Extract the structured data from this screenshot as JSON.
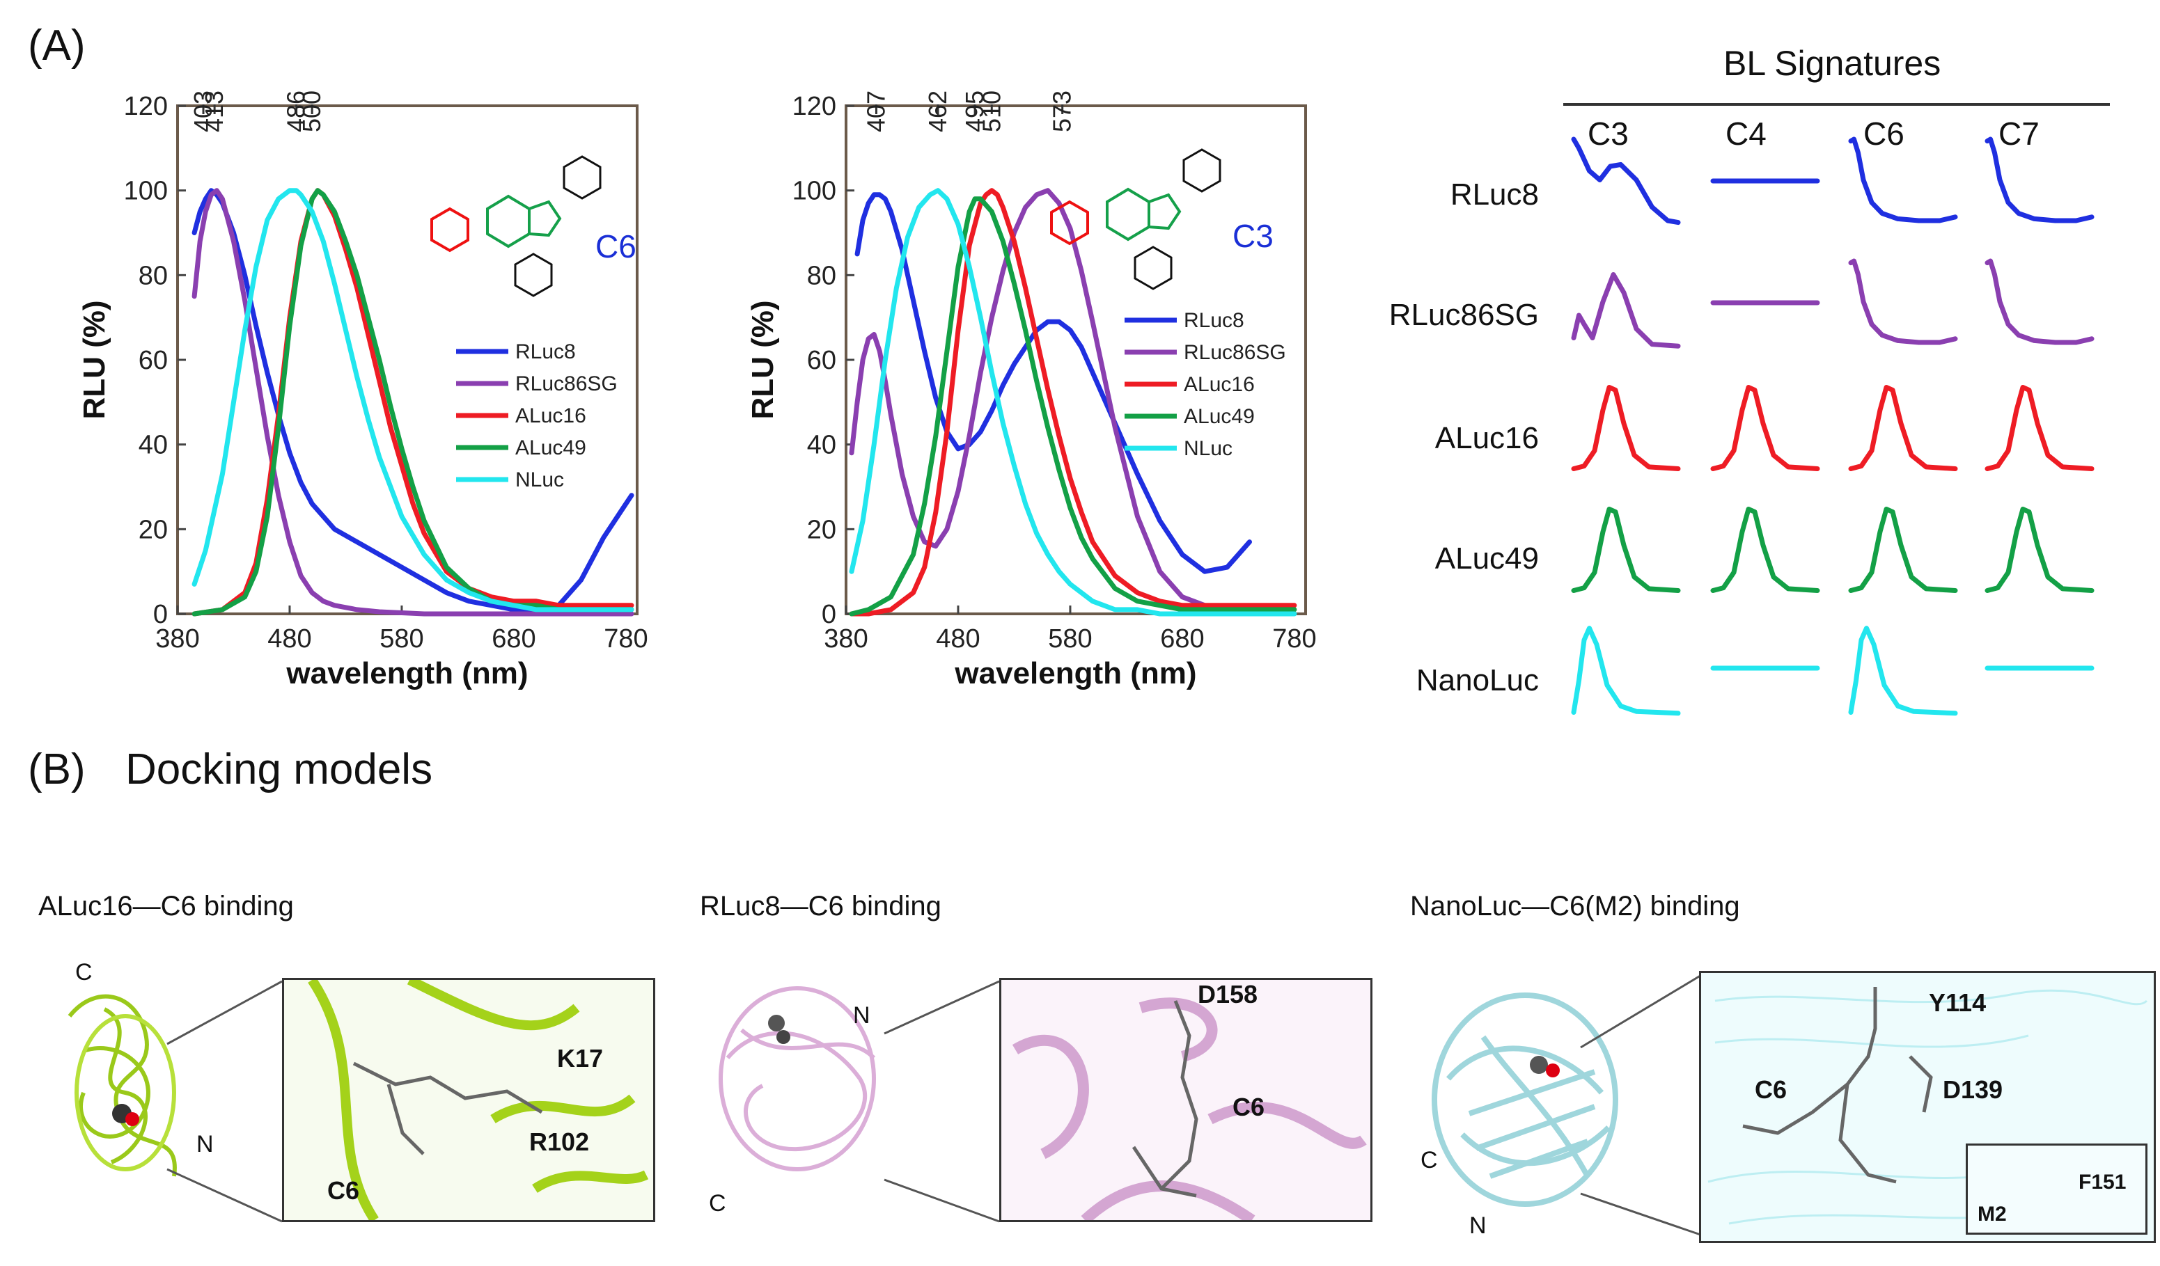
{
  "panel_a_label": "(A)",
  "panel_b_label": "(B)",
  "panel_b_title": "Docking models",
  "colors": {
    "RLuc8": "#1f2fe0",
    "RLuc86SG": "#8a3fb0",
    "ALuc16": "#ee1c24",
    "ALuc49": "#13a046",
    "NLuc": "#22e6ee",
    "substrate_label": "#1a2fd6"
  },
  "chart_data": [
    {
      "type": "line",
      "substrate_label": "C6",
      "xlabel": "wavelength (nm)",
      "ylabel": "RLU (%)",
      "xlim": [
        380,
        790
      ],
      "ylim": [
        0,
        120
      ],
      "xticks": [
        "380",
        "480",
        "580",
        "680",
        "780"
      ],
      "yticks": [
        "0",
        "20",
        "40",
        "60",
        "80",
        "100",
        "120"
      ],
      "peak_labels": [
        {
          "wavelength": 403,
          "text": "403"
        },
        {
          "wavelength": 413,
          "text": "413"
        },
        {
          "wavelength": 486,
          "text": "486"
        },
        {
          "wavelength": 500,
          "text": "500"
        }
      ],
      "legend": [
        "RLuc8",
        "RLuc86SG",
        "ALuc16",
        "ALuc49",
        "NLuc"
      ],
      "series": [
        {
          "name": "RLuc8",
          "x": [
            395,
            400,
            405,
            410,
            415,
            420,
            430,
            440,
            450,
            460,
            470,
            480,
            490,
            500,
            520,
            540,
            560,
            580,
            600,
            620,
            640,
            660,
            680,
            700,
            720,
            740,
            760,
            780,
            785
          ],
          "y": [
            90,
            95,
            98,
            100,
            99,
            97,
            90,
            80,
            68,
            57,
            47,
            38,
            31,
            26,
            20,
            17,
            14,
            11,
            8,
            5,
            3,
            2,
            1,
            1,
            2,
            8,
            18,
            26,
            28
          ]
        },
        {
          "name": "RLuc86SG",
          "x": [
            395,
            400,
            405,
            410,
            415,
            420,
            430,
            440,
            450,
            460,
            470,
            480,
            490,
            500,
            510,
            520,
            540,
            560,
            600,
            650,
            700,
            750,
            785
          ],
          "y": [
            75,
            88,
            95,
            99,
            100,
            98,
            88,
            74,
            58,
            42,
            28,
            17,
            9,
            5,
            3,
            2,
            1,
            0.5,
            0,
            0,
            0,
            0,
            0
          ]
        },
        {
          "name": "ALuc16",
          "x": [
            395,
            420,
            440,
            450,
            460,
            470,
            480,
            490,
            500,
            505,
            510,
            520,
            530,
            540,
            550,
            560,
            570,
            580,
            590,
            600,
            620,
            640,
            660,
            680,
            700,
            720,
            740,
            760,
            785
          ],
          "y": [
            0,
            1,
            5,
            12,
            27,
            47,
            70,
            88,
            98,
            100,
            99,
            94,
            86,
            77,
            66,
            55,
            44,
            35,
            26,
            19,
            10,
            6,
            4,
            3,
            3,
            2,
            2,
            2,
            2
          ]
        },
        {
          "name": "ALuc49",
          "x": [
            395,
            420,
            440,
            450,
            460,
            470,
            480,
            490,
            500,
            505,
            510,
            520,
            530,
            540,
            550,
            560,
            570,
            580,
            590,
            600,
            620,
            640,
            660,
            680,
            700,
            720,
            740,
            760,
            785
          ],
          "y": [
            0,
            1,
            4,
            10,
            23,
            44,
            68,
            87,
            98,
            100,
            99,
            95,
            88,
            80,
            70,
            60,
            49,
            39,
            30,
            22,
            11,
            6,
            3,
            2,
            2,
            1,
            1,
            1,
            1
          ]
        },
        {
          "name": "NLuc",
          "x": [
            395,
            405,
            420,
            430,
            440,
            450,
            460,
            470,
            480,
            486,
            490,
            500,
            510,
            520,
            530,
            540,
            550,
            560,
            580,
            600,
            620,
            640,
            660,
            680,
            700,
            720,
            760,
            785
          ],
          "y": [
            7,
            15,
            33,
            50,
            67,
            82,
            93,
            98,
            100,
            100,
            99,
            95,
            88,
            78,
            67,
            56,
            46,
            37,
            23,
            14,
            8,
            5,
            3,
            2,
            1,
            1,
            1,
            1
          ]
        }
      ]
    },
    {
      "type": "line",
      "substrate_label": "C3",
      "xlabel": "wavelength (nm)",
      "ylabel": "RLU (%)",
      "xlim": [
        380,
        790
      ],
      "ylim": [
        0,
        120
      ],
      "xticks": [
        "380",
        "480",
        "580",
        "680",
        "780"
      ],
      "yticks": [
        "0",
        "20",
        "40",
        "60",
        "80",
        "100",
        "120"
      ],
      "peak_labels": [
        {
          "wavelength": 407,
          "text": "407"
        },
        {
          "wavelength": 462,
          "text": "462"
        },
        {
          "wavelength": 495,
          "text": "495"
        },
        {
          "wavelength": 510,
          "text": "510"
        },
        {
          "wavelength": 573,
          "text": "573"
        }
      ],
      "legend": [
        "RLuc8",
        "RLuc86SG",
        "ALuc16",
        "ALuc49",
        "NLuc"
      ],
      "series": [
        {
          "name": "RLuc8",
          "x": [
            390,
            395,
            400,
            405,
            410,
            415,
            420,
            430,
            440,
            450,
            460,
            470,
            480,
            490,
            500,
            510,
            520,
            530,
            540,
            550,
            560,
            570,
            580,
            590,
            600,
            620,
            640,
            660,
            680,
            700,
            720,
            740
          ],
          "y": [
            85,
            93,
            97,
            99,
            99,
            98,
            95,
            86,
            74,
            62,
            51,
            43,
            39,
            40,
            43,
            48,
            54,
            59,
            63,
            67,
            69,
            69,
            67,
            63,
            57,
            45,
            33,
            22,
            14,
            10,
            11,
            17
          ]
        },
        {
          "name": "RLuc86SG",
          "x": [
            385,
            390,
            395,
            400,
            405,
            410,
            415,
            420,
            430,
            440,
            450,
            460,
            470,
            480,
            490,
            500,
            510,
            520,
            530,
            540,
            550,
            560,
            570,
            580,
            590,
            600,
            620,
            640,
            660,
            680,
            700,
            720
          ],
          "y": [
            38,
            50,
            60,
            65,
            66,
            62,
            55,
            47,
            33,
            23,
            17,
            16,
            20,
            29,
            42,
            57,
            70,
            81,
            90,
            96,
            99,
            100,
            97,
            91,
            81,
            69,
            44,
            23,
            10,
            4,
            2,
            1
          ]
        },
        {
          "name": "ALuc16",
          "x": [
            385,
            400,
            420,
            440,
            450,
            460,
            470,
            480,
            490,
            500,
            505,
            510,
            515,
            520,
            530,
            540,
            550,
            560,
            570,
            580,
            590,
            600,
            620,
            640,
            660,
            680,
            700,
            740,
            780
          ],
          "y": [
            0,
            0,
            1,
            5,
            11,
            24,
            43,
            67,
            87,
            97,
            99,
            100,
            99,
            96,
            88,
            77,
            65,
            53,
            42,
            32,
            24,
            17,
            9,
            5,
            3,
            2,
            2,
            2,
            2
          ]
        },
        {
          "name": "ALuc49",
          "x": [
            385,
            400,
            420,
            440,
            450,
            460,
            470,
            480,
            490,
            495,
            500,
            510,
            520,
            530,
            540,
            550,
            560,
            570,
            580,
            590,
            600,
            620,
            640,
            660,
            680,
            700,
            740,
            780
          ],
          "y": [
            0,
            1,
            4,
            14,
            26,
            42,
            62,
            82,
            95,
            98,
            98,
            95,
            88,
            78,
            67,
            55,
            44,
            34,
            25,
            18,
            13,
            6,
            3,
            2,
            1,
            1,
            1,
            1
          ]
        },
        {
          "name": "NLuc",
          "x": [
            385,
            395,
            405,
            415,
            425,
            435,
            445,
            455,
            462,
            470,
            480,
            490,
            500,
            510,
            520,
            530,
            540,
            550,
            560,
            570,
            580,
            600,
            620,
            640,
            660,
            680,
            700,
            740,
            780
          ],
          "y": [
            10,
            22,
            40,
            60,
            77,
            89,
            96,
            99,
            100,
            98,
            92,
            82,
            70,
            57,
            45,
            35,
            26,
            19,
            14,
            10,
            7,
            3,
            1,
            1,
            0,
            0,
            0,
            0,
            0
          ]
        }
      ]
    }
  ],
  "signatures": {
    "title": "BL Signatures",
    "columns": [
      "C3",
      "C4",
      "C6",
      "C7"
    ],
    "rows": [
      {
        "label": "RLuc8",
        "color": "#1f2fe0",
        "shapes": [
          "double-dip",
          "flat",
          "decay",
          "decay"
        ]
      },
      {
        "label": "RLuc86SG",
        "color": "#8a3fb0",
        "shapes": [
          "double-rise",
          "flat",
          "decay",
          "decay"
        ]
      },
      {
        "label": "ALuc16",
        "color": "#ee1c24",
        "shapes": [
          "peak",
          "peak",
          "peak",
          "peak"
        ]
      },
      {
        "label": "ALuc49",
        "color": "#13a046",
        "shapes": [
          "peak",
          "peak",
          "peak",
          "peak"
        ]
      },
      {
        "label": "NanoLuc",
        "color": "#22e6ee",
        "shapes": [
          "early-peak",
          "flat",
          "early-peak",
          "flat"
        ]
      }
    ]
  },
  "docking": [
    {
      "caption": "ALuc16—C6 binding",
      "terminus_top": "C",
      "terminus_bottom": "N",
      "zoom_labels": [
        "K17",
        "R102",
        "C6"
      ]
    },
    {
      "caption": "RLuc8—C6 binding",
      "terminus_top": "N",
      "terminus_bottom": "C",
      "zoom_labels": [
        "D158",
        "C6"
      ]
    },
    {
      "caption": "NanoLuc—C6(M2) binding",
      "terminus_top": "C",
      "terminus_bottom": "N",
      "zoom_labels": [
        "Y114",
        "C6",
        "D139",
        "F151",
        "M2"
      ]
    }
  ]
}
